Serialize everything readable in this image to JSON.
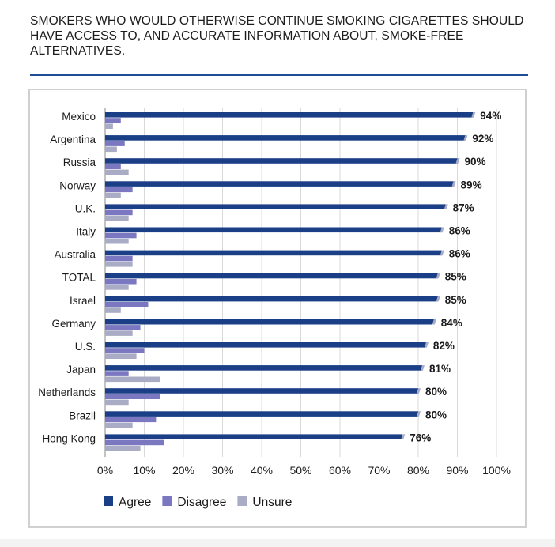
{
  "chart_data": {
    "type": "bar",
    "orientation": "horizontal",
    "title": "SMOKERS WHO WOULD OTHERWISE CONTINUE SMOKING CIGARETTES SHOULD HAVE ACCESS TO, AND ACCURATE INFORMATION ABOUT, SMOKE-FREE ALTERNATIVES.",
    "categories": [
      "Mexico",
      "Argentina",
      "Russia",
      "Norway",
      "U.K.",
      "Italy",
      "Australia",
      "TOTAL",
      "Israel",
      "Germany",
      "U.S.",
      "Japan",
      "Netherlands",
      "Brazil",
      "Hong Kong"
    ],
    "series": [
      {
        "name": "Agree",
        "color": "#1b3f86",
        "values": [
          94,
          92,
          90,
          89,
          87,
          86,
          86,
          85,
          85,
          84,
          82,
          81,
          80,
          80,
          76
        ]
      },
      {
        "name": "Disagree",
        "color": "#7b77c1",
        "values": [
          4,
          5,
          4,
          7,
          7,
          8,
          7,
          8,
          11,
          9,
          10,
          6,
          14,
          13,
          15
        ]
      },
      {
        "name": "Unsure",
        "color": "#a9acc4",
        "values": [
          2,
          3,
          6,
          4,
          6,
          6,
          7,
          6,
          4,
          7,
          8,
          14,
          6,
          7,
          9
        ]
      }
    ],
    "data_labels": [
      "94%",
      "92%",
      "90%",
      "89%",
      "87%",
      "86%",
      "86%",
      "85%",
      "85%",
      "84%",
      "82%",
      "81%",
      "80%",
      "80%",
      "76%"
    ],
    "x_ticks": [
      "0%",
      "10%",
      "20%",
      "30%",
      "40%",
      "50%",
      "60%",
      "70%",
      "80%",
      "90%",
      "100%"
    ],
    "xlim": [
      0,
      100
    ],
    "grid": "vertical",
    "legend_position": "bottom-left"
  }
}
